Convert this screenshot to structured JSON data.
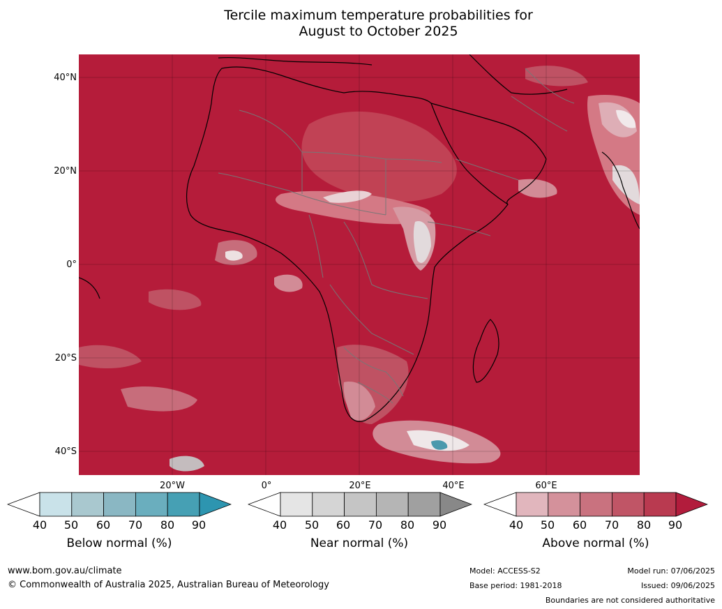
{
  "title": {
    "line1": "Tercile maximum temperature probabilities for",
    "line2": "August to October 2025"
  },
  "map": {
    "lat_labels": [
      "40°N",
      "20°N",
      "0°",
      "20°S",
      "40°S"
    ],
    "lon_labels": [
      "20°W",
      "0°",
      "20°E",
      "40°E",
      "60°E"
    ],
    "background_color": "#b51c3a"
  },
  "colorbars": [
    {
      "label": "Below normal (%)",
      "ticks": [
        "40",
        "50",
        "60",
        "70",
        "80",
        "90"
      ],
      "colors": [
        "#ffffff",
        "#c9e2e9",
        "#a9c8cf",
        "#8ab7c3",
        "#6aaebe",
        "#46a0b4",
        "#2d95b0"
      ]
    },
    {
      "label": "Near normal (%)",
      "ticks": [
        "40",
        "50",
        "60",
        "70",
        "80",
        "90"
      ],
      "colors": [
        "#ffffff",
        "#e5e5e5",
        "#d5d5d5",
        "#c5c5c5",
        "#b5b5b5",
        "#a0a0a0",
        "#888888"
      ]
    },
    {
      "label": "Above normal (%)",
      "ticks": [
        "40",
        "50",
        "60",
        "70",
        "80",
        "90"
      ],
      "colors": [
        "#ffffff",
        "#e1b6bd",
        "#d4919b",
        "#c9727f",
        "#c05566",
        "#b93a50",
        "#b21c3c"
      ]
    }
  ],
  "footer": {
    "url": "www.bom.gov.au/climate",
    "copyright": "© Commonwealth of Australia 2025, Australian Bureau of Meteorology",
    "model": "Model: ACCESS-S2",
    "base_period": "Base period: 1981-2018",
    "model_run": "Model run: 07/06/2025",
    "issued": "Issued: 09/06/2025",
    "disclaimer": "Boundaries are not considered authoritative"
  }
}
